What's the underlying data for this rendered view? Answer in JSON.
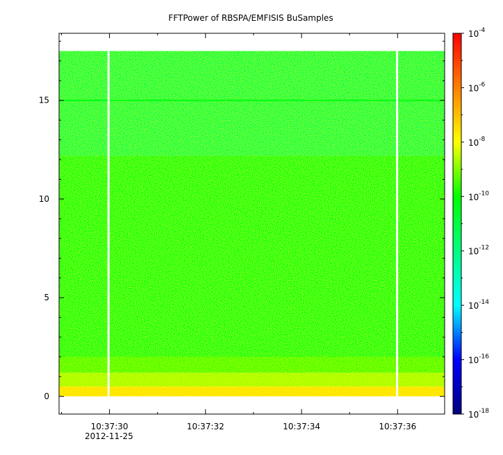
{
  "chart_data": {
    "type": "heatmap",
    "title": "FFTPower of RBSPA/EMFISIS  BuSamples",
    "xlabel": "",
    "ylabel": "",
    "x_tick_labels": [
      "10:37:30",
      "10:37:32",
      "10:37:34",
      "10:37:36"
    ],
    "x_tick_values_s": [
      30,
      32,
      34,
      36
    ],
    "x_date_label": "2012-11-25",
    "xlim_s": [
      28.95,
      36.98
    ],
    "y_ticks": [
      0,
      5,
      10,
      15
    ],
    "ylim": [
      -0.9,
      18.4
    ],
    "data_y_range": [
      0,
      17.5
    ],
    "data_gaps_s": [
      29.98,
      35.99
    ],
    "z_scale": "log",
    "z_range": [
      1e-18,
      0.0001
    ],
    "colorbar": {
      "tick_bases": [
        "10",
        "10",
        "10",
        "10",
        "10",
        "10",
        "10",
        "10"
      ],
      "tick_exponents": [
        "-4",
        "-6",
        "-8",
        "-10",
        "-12",
        "-14",
        "-16",
        "-18"
      ],
      "tick_exp_values": [
        -4,
        -6,
        -8,
        -10,
        -12,
        -14,
        -16,
        -18
      ],
      "colormap": [
        "#00007f",
        "#0000ff",
        "#00ffff",
        "#00ff80",
        "#00ff00",
        "#ffff00",
        "#ff8000",
        "#ff0000"
      ]
    },
    "spectral_bands": [
      {
        "y_from": 0,
        "y_to": 0.5,
        "log_power": -7.5
      },
      {
        "y_from": 0.5,
        "y_to": 1.2,
        "log_power": -8.8
      },
      {
        "y_from": 1.2,
        "y_to": 2.0,
        "log_power": -9.6
      },
      {
        "y_from": 2.0,
        "y_to": 12.2,
        "log_power": -10.4
      },
      {
        "y_from": 12.2,
        "y_to": 17.5,
        "log_power": -11.3
      }
    ],
    "line_features": [
      {
        "y": 15.0,
        "log_power": -10.2
      }
    ]
  }
}
